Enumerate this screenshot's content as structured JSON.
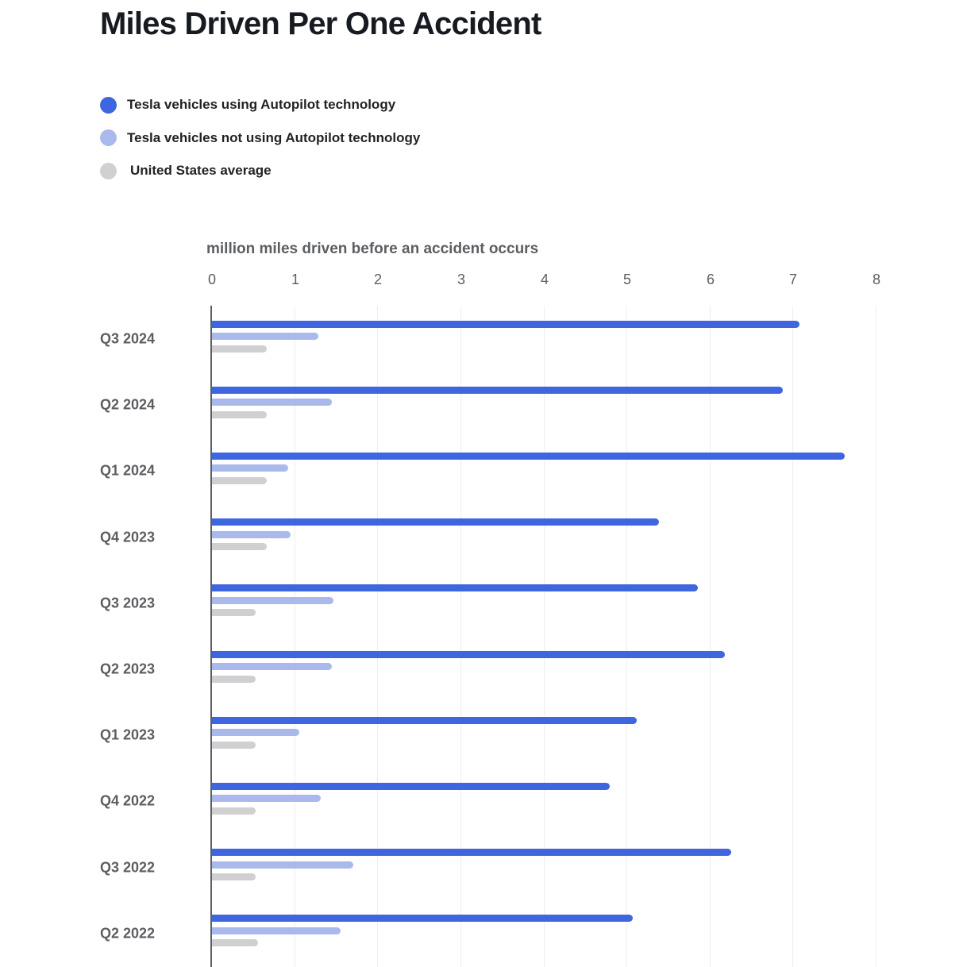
{
  "chart_data": {
    "type": "bar",
    "orientation": "horizontal",
    "title": "Miles Driven Per One Accident",
    "xlabel": "million miles driven before an accident occurs",
    "ylabel": "",
    "xlim": [
      0,
      8
    ],
    "xticks": [
      "0",
      "1",
      "2",
      "3",
      "4",
      "5",
      "6",
      "7",
      "8"
    ],
    "grid": true,
    "legend_position": "top-left",
    "categories": [
      "Q3 2024",
      "Q2 2024",
      "Q1 2024",
      "Q4 2023",
      "Q3 2023",
      "Q2 2023",
      "Q1 2023",
      "Q4 2022",
      "Q3 2022",
      "Q2 2022"
    ],
    "series": [
      {
        "name": "Tesla vehicles using Autopilot technology",
        "color": "#3e66df",
        "values": [
          7.08,
          6.88,
          7.63,
          5.39,
          5.86,
          6.18,
          5.12,
          4.8,
          6.26,
          5.08
        ]
      },
      {
        "name": "Tesla vehicles not using Autopilot technology",
        "color": "#aab9ec",
        "values": [
          1.29,
          1.45,
          0.93,
          0.96,
          1.47,
          1.45,
          1.06,
          1.32,
          1.71,
          1.56
        ]
      },
      {
        "name": "United States average",
        "color": "#d0d0d2",
        "values": [
          0.67,
          0.67,
          0.67,
          0.67,
          0.54,
          0.54,
          0.54,
          0.54,
          0.54,
          0.56
        ]
      }
    ]
  },
  "page": {
    "title": "Miles Driven Per One Accident",
    "axis_title": "million miles driven before an accident occurs"
  },
  "legend": [
    {
      "label": "Tesla vehicles using Autopilot technology",
      "color": "#3e66df"
    },
    {
      "label": "Tesla vehicles not using Autopilot technology",
      "color": "#aab9ec"
    },
    {
      "label": "United States average",
      "color": "#d0d0d2"
    }
  ]
}
